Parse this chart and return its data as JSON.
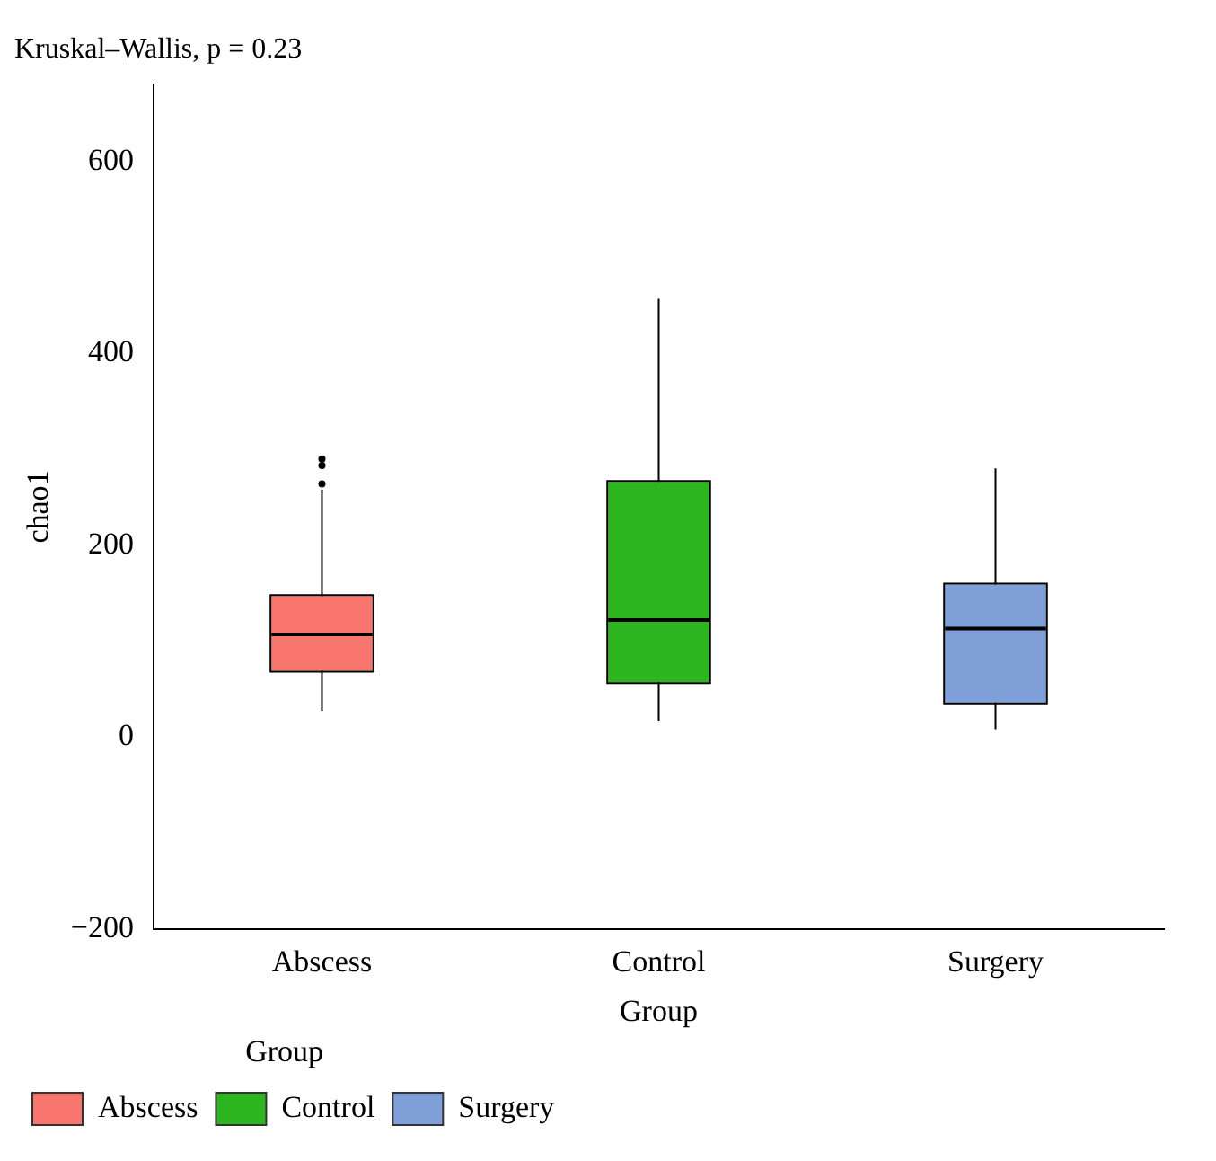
{
  "chart_data": {
    "type": "box",
    "title": "Kruskal–Wallis, p = 0.23",
    "xlabel": "Group",
    "ylabel": "chao1",
    "legend_title": "Group",
    "legend": "bottom left",
    "categories": [
      "Abscess",
      "Control",
      "Surgery"
    ],
    "series": [
      {
        "name": "Abscess",
        "color": "#f8766d",
        "boxes": [
          {
            "low": 27,
            "q1": 69,
            "median": 107,
            "q3": 147,
            "high": 258,
            "outliers": [
              264,
              283,
              290
            ]
          },
          null,
          null
        ]
      },
      {
        "name": "Control",
        "color": "#2db51f",
        "boxes": [
          null,
          {
            "low": 17,
            "q1": 57,
            "median": 122,
            "q3": 266,
            "high": 457
          },
          null
        ]
      },
      {
        "name": "Surgery",
        "color": "#7f9fd8",
        "boxes": [
          null,
          null,
          {
            "low": 8,
            "q1": 36,
            "median": 113,
            "q3": 159,
            "high": 280
          }
        ]
      }
    ],
    "ylim": [
      -200,
      680
    ],
    "yticks": [
      -200,
      0,
      200,
      400,
      600
    ],
    "grid": false
  }
}
